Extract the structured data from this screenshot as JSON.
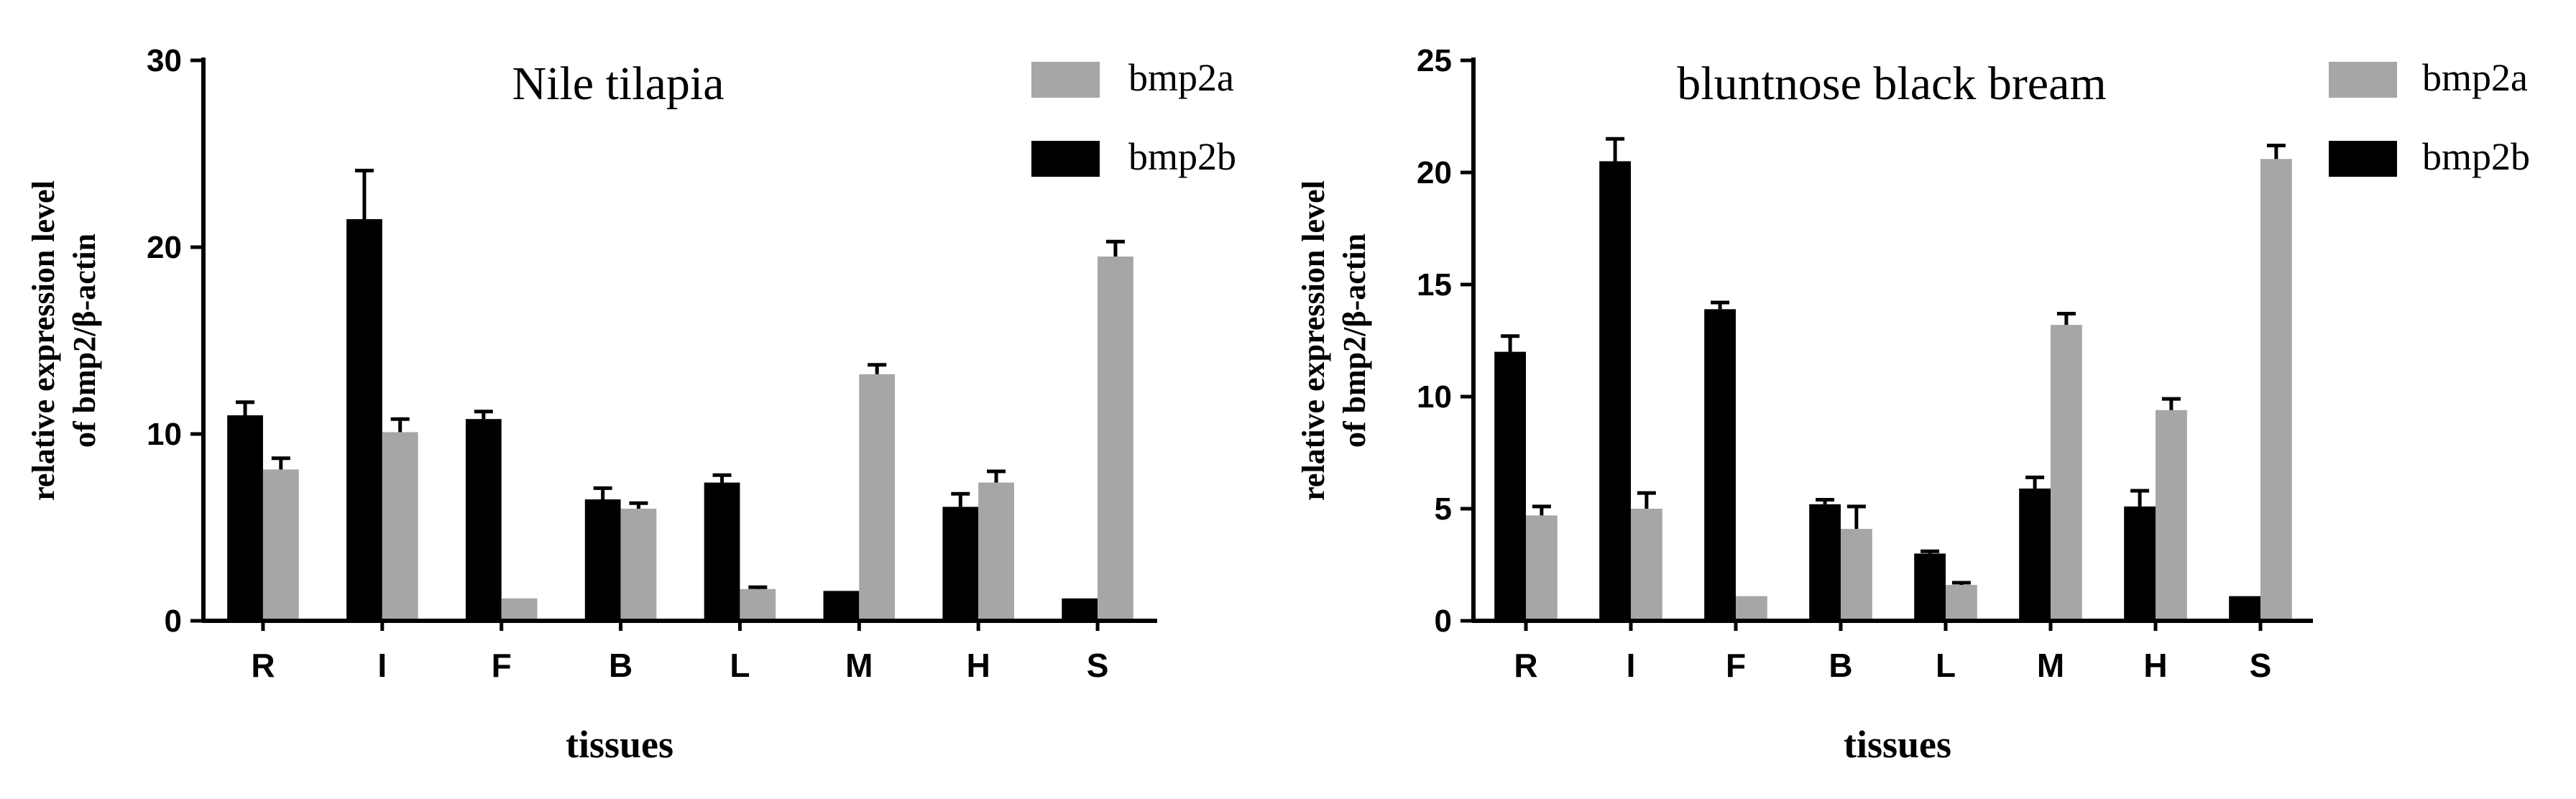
{
  "chart_data": [
    {
      "type": "bar",
      "title": "Nile tilapia",
      "xlabel": "tissues",
      "ylabel": [
        "relative expression level",
        "of bmp2/β-actin"
      ],
      "categories": [
        "R",
        "I",
        "F",
        "B",
        "L",
        "M",
        "H",
        "S"
      ],
      "ylim": [
        0,
        30
      ],
      "yticks": [
        0,
        10,
        20,
        30
      ],
      "legend_position": "top-right",
      "series": [
        {
          "name": "bmp2b",
          "color": "#000000",
          "values": [
            11.0,
            21.5,
            10.8,
            6.5,
            7.4,
            1.6,
            6.1,
            1.2
          ],
          "errors": [
            0.7,
            2.6,
            0.4,
            0.6,
            0.4,
            0.0,
            0.7,
            0.0
          ]
        },
        {
          "name": "bmp2a",
          "color": "#a6a6a6",
          "values": [
            8.1,
            10.1,
            1.2,
            6.0,
            1.7,
            13.2,
            7.4,
            19.5
          ],
          "errors": [
            0.6,
            0.7,
            0.0,
            0.3,
            0.1,
            0.5,
            0.6,
            0.8
          ]
        }
      ],
      "legend_order": [
        "bmp2a",
        "bmp2b"
      ]
    },
    {
      "type": "bar",
      "title": "bluntnose black bream",
      "xlabel": "tissues",
      "ylabel": [
        "relative expression level",
        "of bmp2/β-actin"
      ],
      "categories": [
        "R",
        "I",
        "F",
        "B",
        "L",
        "M",
        "H",
        "S"
      ],
      "ylim": [
        0,
        25
      ],
      "yticks": [
        0,
        5,
        10,
        15,
        20,
        25
      ],
      "legend_position": "top-right",
      "series": [
        {
          "name": "bmp2b",
          "color": "#000000",
          "values": [
            12.0,
            20.5,
            13.9,
            5.2,
            3.0,
            5.9,
            5.1,
            1.1
          ],
          "errors": [
            0.7,
            1.0,
            0.3,
            0.2,
            0.1,
            0.5,
            0.7,
            0.0
          ]
        },
        {
          "name": "bmp2a",
          "color": "#a6a6a6",
          "values": [
            4.7,
            5.0,
            1.1,
            4.1,
            1.6,
            13.2,
            9.4,
            20.6
          ],
          "errors": [
            0.4,
            0.7,
            0.0,
            1.0,
            0.1,
            0.5,
            0.5,
            0.6
          ]
        }
      ],
      "legend_order": [
        "bmp2a",
        "bmp2b"
      ]
    }
  ]
}
